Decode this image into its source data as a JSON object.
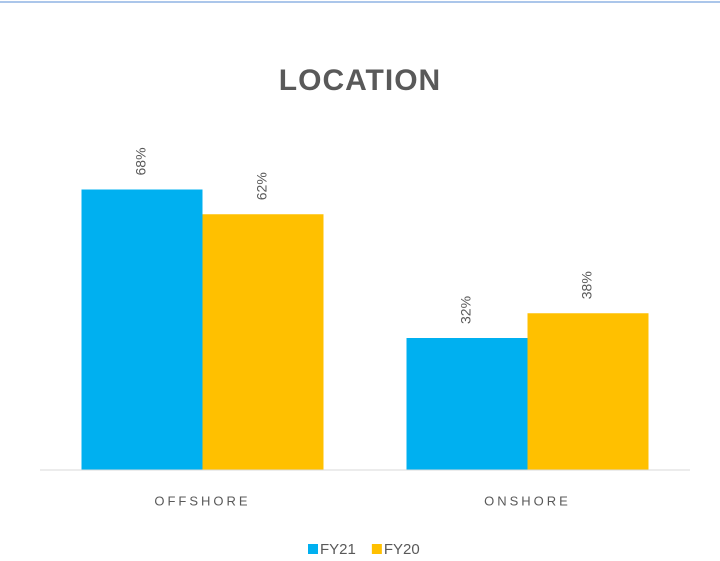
{
  "chart_data": {
    "type": "bar",
    "title": "LOCATION",
    "categories": [
      "OFFSHORE",
      "ONSHORE"
    ],
    "series": [
      {
        "name": "FY21",
        "color": "#00b0f0",
        "values": [
          68,
          32
        ],
        "value_labels": [
          "68%",
          "32%"
        ]
      },
      {
        "name": "FY20",
        "color": "#ffc000",
        "values": [
          62,
          38
        ],
        "value_labels": [
          "62%",
          "38%"
        ]
      }
    ],
    "ylim": [
      0,
      80
    ]
  }
}
